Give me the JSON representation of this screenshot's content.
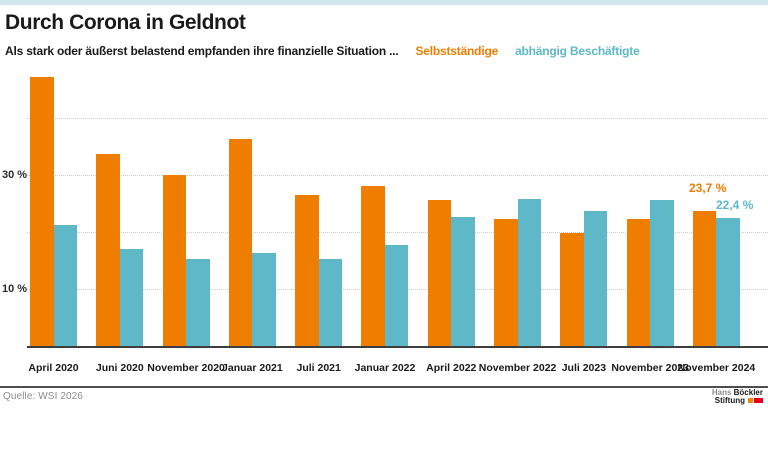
{
  "page": {
    "accent_strip_color": "#d3e5ec"
  },
  "header": {
    "title": "Durch Corona in Geldnot",
    "subtitle": "Als stark oder äußerst belastend empfanden ihre finanzielle Situation ...",
    "legend": [
      {
        "label": "Selbstständige",
        "color": "#ef7d00"
      },
      {
        "label": "abhängig Beschäftigte",
        "color": "#5fb8c7"
      }
    ]
  },
  "chart_data": {
    "type": "bar",
    "categories": [
      "April 2020",
      "Juni 2020",
      "November 2020",
      "Januar 2021",
      "Juli 2021",
      "Januar 2022",
      "April 2022",
      "November 2022",
      "Juli 2023",
      "November 2023",
      "November 2024"
    ],
    "series": [
      {
        "name": "Selbstständige",
        "color": "#ef7d00",
        "values": [
          47.2,
          33.6,
          30.0,
          36.4,
          26.5,
          28.0,
          25.6,
          22.3,
          19.8,
          22.2,
          23.7
        ]
      },
      {
        "name": "abhängig Beschäftigte",
        "color": "#5fb8c7",
        "values": [
          21.3,
          17.1,
          15.3,
          16.4,
          15.3,
          17.7,
          22.7,
          25.8,
          23.7,
          25.6,
          22.4
        ]
      }
    ],
    "title": "Durch Corona in Geldnot",
    "xlabel": "",
    "ylabel": "",
    "ylim": [
      0,
      48
    ],
    "yticks": [
      {
        "value": 30,
        "label": "30 %"
      },
      {
        "value": 10,
        "label": "10 %"
      }
    ],
    "gridlines": [
      10,
      20,
      30,
      40
    ],
    "grid": "dotted horizontal",
    "legend_position": "top, as colored text after subtitle",
    "annotations": [
      {
        "text": "23,7 %",
        "series": "Selbstständige",
        "color": "#ef7d00"
      },
      {
        "text": "22,4 %",
        "series": "abhängig Beschäftigte",
        "color": "#5fb8c7"
      }
    ]
  },
  "footer": {
    "source": "Quelle: WSI 2026",
    "logo": {
      "line1_light": "Hans",
      "line1_bold": "Böckler",
      "line2_bold": "Stiftung",
      "block_colors": [
        "#f18700",
        "#e2001a"
      ]
    }
  }
}
